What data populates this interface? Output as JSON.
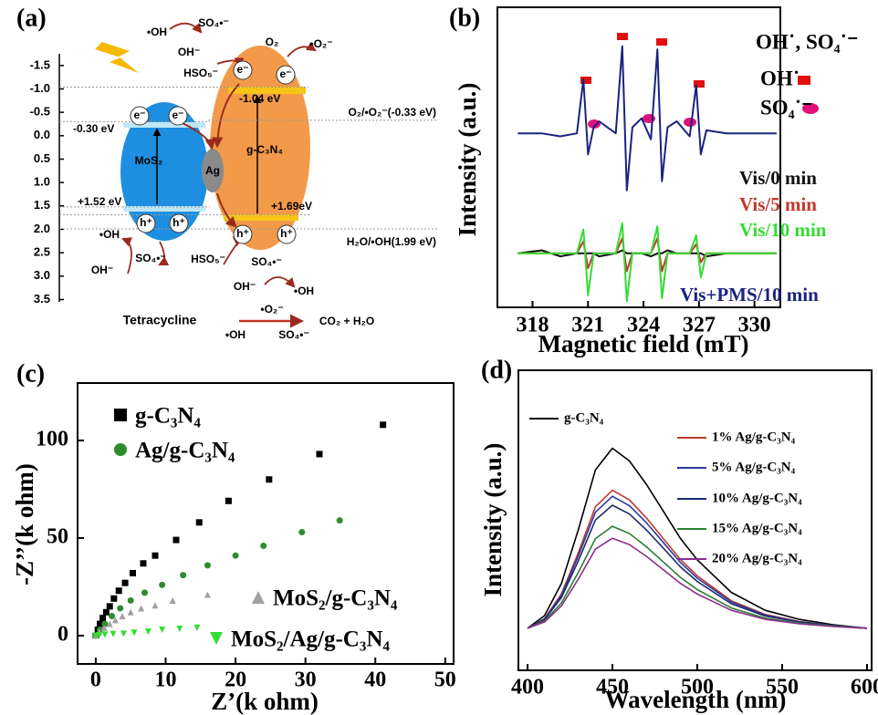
{
  "chart_data": [
    {
      "type": "diagram",
      "label": "(a)",
      "ylim": [
        3.55,
        -1.75
      ],
      "yticks": [
        -1.5,
        {
          "value": -1.0,
          "label": "-1.0"
        },
        -0.5,
        {
          "value": 0,
          "label": "0.0"
        },
        0.5,
        {
          "value": 1,
          "label": "1.0"
        },
        1.5,
        {
          "value": 2,
          "label": "2.0"
        },
        2.5,
        {
          "value": 3,
          "label": "3.0"
        },
        3.5
      ],
      "levels": [
        {
          "label": "-1.04 eV",
          "value": -1.04
        },
        {
          "label": "-0.30 eV",
          "value": -0.3
        },
        {
          "label": "+1.52 eV",
          "value": 1.52
        },
        {
          "label": "+1.69eV",
          "value": 1.69
        },
        {
          "label": "O₂/•O₂⁻(-0.33 eV)",
          "value": -0.33
        },
        {
          "label": "H₂O/•OH(1.99 eV)",
          "value": 1.99
        }
      ],
      "annotations": [
        "•OH",
        "SO₄•⁻",
        "OH⁻",
        "HSO₅⁻",
        "O₂",
        "•O₂⁻",
        "e⁻",
        "e⁻",
        "e⁻",
        "e⁻",
        "MoS₂",
        "Ag",
        "g-C₃N₄",
        "h⁺",
        "h⁺",
        "h⁺",
        "h⁺",
        "•OH",
        "OH⁻",
        "SO₄•⁻",
        "HSO₅⁻",
        "SO₄•⁻",
        "OH⁻",
        "•OH",
        "Tetracycline",
        "•O₂⁻",
        "CO₂ +  H₂O",
        "•OH",
        "SO₄•⁻"
      ]
    },
    {
      "type": "line",
      "label": "(b)",
      "xlabel": "Magnetic field (mT)",
      "ylabel": "Intensity (a.u.)",
      "xlim": [
        316.1,
        331.4
      ],
      "xticks": [
        318,
        321,
        324,
        327,
        330
      ],
      "ylim": [
        0,
        100
      ],
      "x": [
        317.2,
        318.5,
        319.5,
        320.4,
        320.75,
        321.0,
        321.3,
        321.6,
        322.5,
        322.85,
        323.1,
        323.4,
        323.9,
        324.4,
        324.75,
        325.0,
        325.3,
        325.8,
        326.5,
        326.85,
        327.1,
        327.4,
        328.5,
        329.5,
        331.2
      ],
      "series": [
        {
          "name": "Vis/0 min",
          "color": "#111111",
          "values": [
            18,
            19,
            17,
            18,
            18,
            18,
            18,
            17,
            18,
            19,
            18,
            18,
            18,
            17,
            18,
            18,
            19,
            18,
            18,
            18,
            18,
            17,
            18,
            18,
            18
          ]
        },
        {
          "name": "Vis/5 min",
          "color": "#c0392b",
          "values": [
            18,
            18,
            18,
            18,
            22,
            13,
            18,
            18,
            18,
            23,
            12,
            18,
            18,
            18,
            23,
            12,
            18,
            18,
            18,
            21,
            15,
            18,
            18,
            18,
            18
          ]
        },
        {
          "name": "Vis/10 min",
          "color": "#33dd33",
          "values": [
            18,
            18,
            18,
            18,
            26,
            4,
            18,
            18,
            18,
            28,
            2,
            18,
            18,
            18,
            27,
            3,
            18,
            18,
            18,
            24,
            10,
            18,
            18,
            18,
            18
          ]
        },
        {
          "name": "Vis+PMS/10 min",
          "color": "#1a237e",
          "values": [
            58,
            58,
            57,
            58,
            76,
            51,
            60,
            62,
            58,
            87,
            39,
            60,
            63,
            56,
            86,
            42,
            60,
            62,
            57,
            74,
            51,
            59,
            58,
            58,
            58
          ]
        }
      ],
      "annotations": [
        "OH˙, SO₄˙⁻",
        "OH˙",
        "SO₄˙⁻"
      ]
    },
    {
      "type": "scatter",
      "label": "(c)",
      "xlabel": "Z’(k ohm)",
      "ylabel": "-Z’’(k ohm)",
      "xlim": [
        -2.6,
        51.2
      ],
      "xticks": [
        0,
        10,
        20,
        30,
        40,
        50
      ],
      "ylim": [
        -14.5,
        129.4
      ],
      "yticks": [
        0,
        50,
        100
      ],
      "series": [
        {
          "name": "g-C₃N₄",
          "color": "#000000",
          "marker": "square",
          "x": [
            0,
            0.3,
            0.6,
            1,
            1.5,
            2,
            2.6,
            3.3,
            4.2,
            5.3,
            6.8,
            8.5,
            11.5,
            14.8,
            19,
            24.8,
            32,
            41.1
          ],
          "values": [
            0,
            3,
            6,
            9,
            12,
            15,
            19,
            23,
            27,
            32,
            37,
            41,
            49,
            58,
            69,
            80,
            93,
            108
          ]
        },
        {
          "name": "Ag/g-C₃N₄",
          "color": "#2e8b2e",
          "marker": "circle",
          "x": [
            0,
            0.6,
            1.3,
            2.3,
            3.5,
            5,
            7,
            9.5,
            12.5,
            16,
            20,
            24,
            29.5,
            34.9
          ],
          "values": [
            0,
            3,
            6,
            10,
            14,
            18,
            22,
            26,
            31,
            36,
            41,
            46,
            53,
            59
          ]
        },
        {
          "name": "MoS₂/g-C₃N₄",
          "color": "#a0a0a0",
          "marker": "triangle-up",
          "x": [
            0,
            0.5,
            1.2,
            2,
            2.8,
            3.8,
            5,
            6.5,
            8.5,
            11,
            16
          ],
          "values": [
            0,
            2,
            4,
            6,
            8,
            10,
            12,
            14,
            15.5,
            18,
            21
          ]
        },
        {
          "name": "MoS₂/Ag/g-C₃N₄",
          "color": "#33dd33",
          "marker": "triangle-down",
          "x": [
            0,
            0.5,
            1.3,
            2.5,
            4,
            5.5,
            7.5,
            9.5,
            12,
            14.5
          ],
          "values": [
            0,
            0.3,
            0.5,
            0.8,
            1,
            1.5,
            2,
            3,
            3.5,
            4
          ]
        }
      ]
    },
    {
      "type": "line",
      "label": "(d)",
      "xlabel": "Wavelength (nm)",
      "ylabel": "Intensity (a.u.)",
      "xlim": [
        394.6,
        602.7
      ],
      "xticks": [
        400,
        450,
        500,
        550,
        600
      ],
      "ylim": [
        0,
        100
      ],
      "x": [
        400,
        410,
        420,
        430,
        440,
        450,
        460,
        470,
        480,
        490,
        500,
        520,
        540,
        560,
        580,
        600
      ],
      "series": [
        {
          "name": "g-C₃N₄",
          "color": "#000000",
          "values": [
            14,
            18.2,
            29,
            47,
            66.8,
            74,
            69.8,
            62,
            53,
            44,
            36.8,
            26,
            20,
            17,
            15.2,
            14
          ]
        },
        {
          "name": "1% Ag/g-C₃N₄",
          "color": "#c0392b",
          "values": [
            14,
            17.2,
            25.5,
            39.3,
            54.5,
            60,
            56.8,
            50.8,
            43.9,
            37,
            31.5,
            23.2,
            18.6,
            16.3,
            14.9,
            14
          ]
        },
        {
          "name": "5% Ag/g-C₃N₄",
          "color": "#2b3aa0",
          "values": [
            14,
            17.1,
            25,
            38.2,
            52.7,
            58,
            54.9,
            49.2,
            42.6,
            36,
            30.7,
            22.8,
            18.4,
            16.2,
            14.9,
            14
          ]
        },
        {
          "name": "10% Ag/g-C₃N₄",
          "color": "#1f2a6b",
          "values": [
            14,
            16.9,
            24.3,
            36.6,
            50.1,
            55,
            52.1,
            46.8,
            40.7,
            34.5,
            29.6,
            22.2,
            18.1,
            16.1,
            14.8,
            14
          ]
        },
        {
          "name": "15% Ag/g-C₃N₄",
          "color": "#2e7d32",
          "values": [
            14,
            16.4,
            22.5,
            32.7,
            43.9,
            48,
            45.6,
            41.2,
            36.1,
            31,
            26.9,
            20.8,
            17.4,
            15.7,
            14.7,
            14
          ]
        },
        {
          "name": "20% Ag/g-C₃N₄",
          "color": "#8e2c8e",
          "values": [
            14,
            16.1,
            21.5,
            30.5,
            40.4,
            44,
            41.9,
            38,
            33.5,
            29,
            25.4,
            20,
            17,
            15.5,
            14.6,
            14
          ]
        }
      ]
    }
  ]
}
